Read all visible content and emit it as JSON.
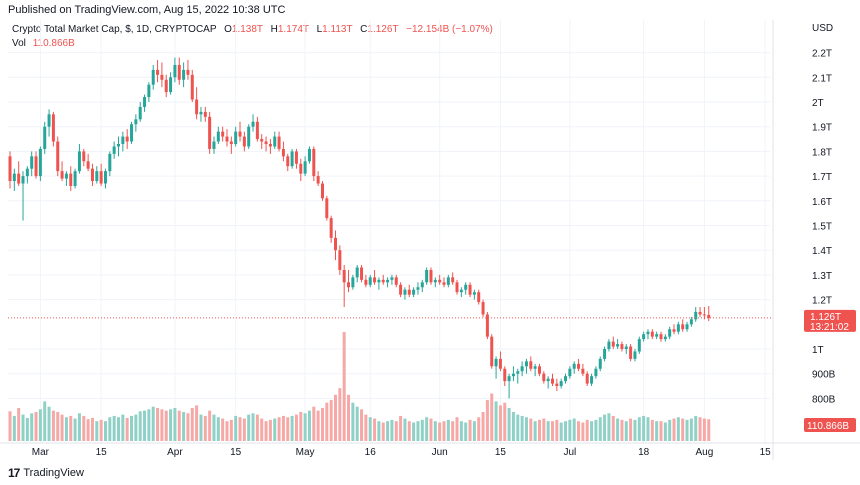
{
  "header": {
    "published": "Published on TradingView.com, Aug 15, 2022 10:38 UTC"
  },
  "legend": {
    "symbol": "Crypto Total Market Cap, $, 1D, CRYPTOCAP",
    "o_label": "O",
    "o_value": "1.138T",
    "h_label": "H",
    "h_value": "1.174T",
    "l_label": "L",
    "l_value": "1.113T",
    "c_label": "C",
    "c_value": "1.126T",
    "change": "−12.154B (−1.07%)",
    "vol_label": "Vol",
    "vol_value": "110.866B"
  },
  "footer": {
    "brand": "TradingView",
    "logo": "17"
  },
  "colors": {
    "up": "#26a69a",
    "down": "#ef5350",
    "up_vol": "#8fd1c6",
    "down_vol": "#f5a8a6",
    "grid": "#f0f3fa",
    "text": "#131722"
  },
  "chart_data": {
    "type": "candlestick",
    "title": "Crypto Total Market Cap, $, 1D, CRYPTOCAP",
    "currency": "USD",
    "y_ticks": [
      {
        "label": "2.2T",
        "v": 2.2
      },
      {
        "label": "2.1T",
        "v": 2.1
      },
      {
        "label": "2T",
        "v": 2.0
      },
      {
        "label": "1.9T",
        "v": 1.9
      },
      {
        "label": "1.8T",
        "v": 1.8
      },
      {
        "label": "1.7T",
        "v": 1.7
      },
      {
        "label": "1.6T",
        "v": 1.6
      },
      {
        "label": "1.5T",
        "v": 1.5
      },
      {
        "label": "1.4T",
        "v": 1.4
      },
      {
        "label": "1.3T",
        "v": 1.3
      },
      {
        "label": "1.2T",
        "v": 1.2
      },
      {
        "label": "1T",
        "v": 1.0
      },
      {
        "label": "900B",
        "v": 0.9
      },
      {
        "label": "800B",
        "v": 0.8
      }
    ],
    "x_ticks": [
      {
        "label": "Mar",
        "i": 7
      },
      {
        "label": "15",
        "i": 21
      },
      {
        "label": "Apr",
        "i": 38
      },
      {
        "label": "15",
        "i": 52
      },
      {
        "label": "May",
        "i": 68
      },
      {
        "label": "16",
        "i": 83
      },
      {
        "label": "Jun",
        "i": 99
      },
      {
        "label": "15",
        "i": 113
      },
      {
        "label": "Jul",
        "i": 129
      },
      {
        "label": "18",
        "i": 146
      },
      {
        "label": "Aug",
        "i": 160
      },
      {
        "label": "15",
        "i": 174
      }
    ],
    "last_price": {
      "label": "1.126T",
      "value": 1.126,
      "countdown": "13:21:02"
    },
    "last_volume": {
      "label": "110.866B"
    },
    "candles": [
      [
        1.78,
        1.8,
        1.65,
        1.68,
        45
      ],
      [
        1.68,
        1.73,
        1.64,
        1.71,
        38
      ],
      [
        1.71,
        1.76,
        1.66,
        1.67,
        50
      ],
      [
        1.67,
        1.72,
        1.52,
        1.7,
        40
      ],
      [
        1.7,
        1.74,
        1.67,
        1.73,
        35
      ],
      [
        1.73,
        1.8,
        1.7,
        1.78,
        42
      ],
      [
        1.78,
        1.8,
        1.69,
        1.7,
        44
      ],
      [
        1.7,
        1.82,
        1.68,
        1.81,
        48
      ],
      [
        1.81,
        1.92,
        1.79,
        1.9,
        60
      ],
      [
        1.9,
        1.97,
        1.86,
        1.95,
        52
      ],
      [
        1.95,
        1.96,
        1.82,
        1.84,
        46
      ],
      [
        1.84,
        1.86,
        1.7,
        1.72,
        44
      ],
      [
        1.72,
        1.76,
        1.68,
        1.69,
        40
      ],
      [
        1.69,
        1.72,
        1.66,
        1.71,
        36
      ],
      [
        1.71,
        1.74,
        1.64,
        1.66,
        38
      ],
      [
        1.66,
        1.73,
        1.65,
        1.72,
        34
      ],
      [
        1.72,
        1.83,
        1.71,
        1.8,
        42
      ],
      [
        1.8,
        1.81,
        1.74,
        1.76,
        38
      ],
      [
        1.76,
        1.79,
        1.72,
        1.73,
        33
      ],
      [
        1.73,
        1.75,
        1.66,
        1.68,
        35
      ],
      [
        1.68,
        1.74,
        1.67,
        1.72,
        30
      ],
      [
        1.72,
        1.75,
        1.66,
        1.67,
        32
      ],
      [
        1.67,
        1.73,
        1.65,
        1.72,
        30
      ],
      [
        1.72,
        1.8,
        1.7,
        1.79,
        36
      ],
      [
        1.79,
        1.84,
        1.77,
        1.82,
        38
      ],
      [
        1.82,
        1.86,
        1.78,
        1.83,
        36
      ],
      [
        1.83,
        1.88,
        1.8,
        1.86,
        40
      ],
      [
        1.86,
        1.89,
        1.81,
        1.84,
        35
      ],
      [
        1.84,
        1.92,
        1.83,
        1.91,
        38
      ],
      [
        1.91,
        1.95,
        1.88,
        1.93,
        40
      ],
      [
        1.93,
        2.0,
        1.92,
        1.98,
        45
      ],
      [
        1.98,
        2.03,
        1.96,
        2.02,
        46
      ],
      [
        2.02,
        2.08,
        2.0,
        2.07,
        48
      ],
      [
        2.07,
        2.15,
        2.05,
        2.13,
        52
      ],
      [
        2.13,
        2.17,
        2.08,
        2.11,
        50
      ],
      [
        2.11,
        2.16,
        2.06,
        2.09,
        48
      ],
      [
        2.09,
        2.11,
        2.02,
        2.04,
        46
      ],
      [
        2.04,
        2.12,
        2.03,
        2.1,
        48
      ],
      [
        2.1,
        2.18,
        2.08,
        2.15,
        50
      ],
      [
        2.15,
        2.18,
        2.07,
        2.09,
        46
      ],
      [
        2.09,
        2.16,
        2.06,
        2.13,
        44
      ],
      [
        2.13,
        2.17,
        2.09,
        2.11,
        42
      ],
      [
        2.11,
        2.13,
        2.0,
        2.01,
        50
      ],
      [
        2.01,
        2.06,
        1.93,
        1.95,
        54
      ],
      [
        1.95,
        1.98,
        1.92,
        1.96,
        40
      ],
      [
        1.96,
        1.98,
        1.92,
        1.94,
        38
      ],
      [
        1.94,
        1.96,
        1.79,
        1.81,
        46
      ],
      [
        1.81,
        1.86,
        1.79,
        1.84,
        40
      ],
      [
        1.84,
        1.9,
        1.83,
        1.88,
        36
      ],
      [
        1.88,
        1.9,
        1.84,
        1.86,
        34
      ],
      [
        1.86,
        1.89,
        1.82,
        1.84,
        30
      ],
      [
        1.84,
        1.86,
        1.79,
        1.83,
        32
      ],
      [
        1.83,
        1.9,
        1.82,
        1.88,
        38
      ],
      [
        1.88,
        1.92,
        1.84,
        1.86,
        36
      ],
      [
        1.86,
        1.88,
        1.8,
        1.82,
        34
      ],
      [
        1.82,
        1.91,
        1.81,
        1.9,
        40
      ],
      [
        1.9,
        1.95,
        1.88,
        1.92,
        42
      ],
      [
        1.92,
        1.94,
        1.84,
        1.85,
        40
      ],
      [
        1.85,
        1.87,
        1.81,
        1.84,
        34
      ],
      [
        1.84,
        1.86,
        1.8,
        1.83,
        30
      ],
      [
        1.83,
        1.85,
        1.79,
        1.82,
        32
      ],
      [
        1.82,
        1.88,
        1.81,
        1.86,
        34
      ],
      [
        1.86,
        1.88,
        1.8,
        1.81,
        36
      ],
      [
        1.81,
        1.84,
        1.76,
        1.78,
        38
      ],
      [
        1.78,
        1.79,
        1.72,
        1.74,
        36
      ],
      [
        1.74,
        1.81,
        1.73,
        1.8,
        38
      ],
      [
        1.8,
        1.81,
        1.73,
        1.75,
        40
      ],
      [
        1.75,
        1.77,
        1.68,
        1.71,
        44
      ],
      [
        1.71,
        1.78,
        1.7,
        1.76,
        42
      ],
      [
        1.76,
        1.82,
        1.75,
        1.81,
        46
      ],
      [
        1.81,
        1.82,
        1.68,
        1.7,
        52
      ],
      [
        1.7,
        1.72,
        1.66,
        1.67,
        46
      ],
      [
        1.67,
        1.68,
        1.6,
        1.61,
        50
      ],
      [
        1.61,
        1.62,
        1.52,
        1.53,
        58
      ],
      [
        1.53,
        1.54,
        1.43,
        1.45,
        62
      ],
      [
        1.45,
        1.48,
        1.36,
        1.4,
        70
      ],
      [
        1.4,
        1.42,
        1.3,
        1.32,
        80
      ],
      [
        1.32,
        1.34,
        1.17,
        1.27,
        165
      ],
      [
        1.27,
        1.32,
        1.23,
        1.25,
        70
      ],
      [
        1.25,
        1.3,
        1.24,
        1.29,
        58
      ],
      [
        1.29,
        1.34,
        1.27,
        1.33,
        52
      ],
      [
        1.33,
        1.34,
        1.27,
        1.28,
        48
      ],
      [
        1.28,
        1.3,
        1.25,
        1.26,
        40
      ],
      [
        1.26,
        1.3,
        1.25,
        1.29,
        36
      ],
      [
        1.29,
        1.32,
        1.26,
        1.27,
        34
      ],
      [
        1.27,
        1.29,
        1.24,
        1.28,
        30
      ],
      [
        1.28,
        1.3,
        1.26,
        1.27,
        28
      ],
      [
        1.27,
        1.29,
        1.25,
        1.28,
        30
      ],
      [
        1.28,
        1.3,
        1.26,
        1.29,
        32
      ],
      [
        1.29,
        1.3,
        1.25,
        1.26,
        30
      ],
      [
        1.26,
        1.27,
        1.21,
        1.22,
        38
      ],
      [
        1.22,
        1.25,
        1.2,
        1.24,
        34
      ],
      [
        1.24,
        1.26,
        1.21,
        1.22,
        30
      ],
      [
        1.22,
        1.25,
        1.21,
        1.24,
        28
      ],
      [
        1.24,
        1.27,
        1.22,
        1.25,
        30
      ],
      [
        1.25,
        1.28,
        1.23,
        1.27,
        32
      ],
      [
        1.27,
        1.33,
        1.26,
        1.32,
        36
      ],
      [
        1.32,
        1.33,
        1.26,
        1.27,
        34
      ],
      [
        1.27,
        1.29,
        1.25,
        1.28,
        30
      ],
      [
        1.28,
        1.3,
        1.26,
        1.27,
        28
      ],
      [
        1.27,
        1.29,
        1.25,
        1.26,
        30
      ],
      [
        1.26,
        1.3,
        1.25,
        1.29,
        32
      ],
      [
        1.29,
        1.31,
        1.26,
        1.27,
        30
      ],
      [
        1.27,
        1.28,
        1.22,
        1.23,
        36
      ],
      [
        1.23,
        1.25,
        1.21,
        1.24,
        30
      ],
      [
        1.24,
        1.27,
        1.22,
        1.26,
        28
      ],
      [
        1.26,
        1.27,
        1.21,
        1.22,
        32
      ],
      [
        1.22,
        1.24,
        1.2,
        1.23,
        30
      ],
      [
        1.23,
        1.24,
        1.18,
        1.19,
        36
      ],
      [
        1.19,
        1.2,
        1.13,
        1.14,
        44
      ],
      [
        1.14,
        1.15,
        1.04,
        1.05,
        62
      ],
      [
        1.05,
        1.06,
        0.92,
        0.93,
        72
      ],
      [
        0.93,
        0.97,
        0.88,
        0.96,
        60
      ],
      [
        0.96,
        0.99,
        0.91,
        0.92,
        54
      ],
      [
        0.92,
        0.93,
        0.85,
        0.87,
        58
      ],
      [
        0.87,
        0.9,
        0.8,
        0.89,
        50
      ],
      [
        0.89,
        0.93,
        0.87,
        0.9,
        44
      ],
      [
        0.9,
        0.92,
        0.86,
        0.91,
        40
      ],
      [
        0.91,
        0.95,
        0.89,
        0.93,
        38
      ],
      [
        0.93,
        0.96,
        0.9,
        0.95,
        36
      ],
      [
        0.95,
        0.97,
        0.91,
        0.92,
        34
      ],
      [
        0.92,
        0.94,
        0.89,
        0.93,
        30
      ],
      [
        0.93,
        0.94,
        0.89,
        0.9,
        32
      ],
      [
        0.9,
        0.91,
        0.86,
        0.87,
        34
      ],
      [
        0.87,
        0.89,
        0.84,
        0.88,
        30
      ],
      [
        0.88,
        0.9,
        0.85,
        0.86,
        30
      ],
      [
        0.86,
        0.88,
        0.83,
        0.85,
        32
      ],
      [
        0.85,
        0.88,
        0.84,
        0.87,
        28
      ],
      [
        0.87,
        0.9,
        0.86,
        0.89,
        30
      ],
      [
        0.89,
        0.93,
        0.88,
        0.92,
        32
      ],
      [
        0.92,
        0.95,
        0.9,
        0.94,
        34
      ],
      [
        0.94,
        0.96,
        0.91,
        0.92,
        30
      ],
      [
        0.92,
        0.94,
        0.89,
        0.9,
        28
      ],
      [
        0.9,
        0.91,
        0.85,
        0.86,
        32
      ],
      [
        0.86,
        0.9,
        0.85,
        0.89,
        30
      ],
      [
        0.89,
        0.93,
        0.88,
        0.92,
        32
      ],
      [
        0.92,
        0.97,
        0.91,
        0.96,
        36
      ],
      [
        0.96,
        1.01,
        0.95,
        1.0,
        40
      ],
      [
        1.0,
        1.04,
        0.99,
        1.03,
        42
      ],
      [
        1.03,
        1.05,
        1.0,
        1.01,
        38
      ],
      [
        1.01,
        1.04,
        1.0,
        1.02,
        34
      ],
      [
        1.02,
        1.03,
        0.99,
        1.0,
        32
      ],
      [
        1.0,
        1.02,
        0.98,
        1.01,
        30
      ],
      [
        1.01,
        1.02,
        0.95,
        0.96,
        34
      ],
      [
        0.96,
        1.0,
        0.95,
        0.99,
        32
      ],
      [
        0.99,
        1.05,
        0.98,
        1.04,
        36
      ],
      [
        1.04,
        1.07,
        1.03,
        1.06,
        38
      ],
      [
        1.06,
        1.08,
        1.04,
        1.07,
        36
      ],
      [
        1.07,
        1.08,
        1.04,
        1.05,
        32
      ],
      [
        1.05,
        1.07,
        1.04,
        1.06,
        30
      ],
      [
        1.06,
        1.07,
        1.03,
        1.04,
        30
      ],
      [
        1.04,
        1.06,
        1.03,
        1.05,
        28
      ],
      [
        1.05,
        1.09,
        1.04,
        1.08,
        32
      ],
      [
        1.08,
        1.1,
        1.06,
        1.07,
        34
      ],
      [
        1.07,
        1.11,
        1.06,
        1.1,
        36
      ],
      [
        1.1,
        1.12,
        1.07,
        1.08,
        34
      ],
      [
        1.08,
        1.11,
        1.07,
        1.1,
        32
      ],
      [
        1.1,
        1.13,
        1.09,
        1.12,
        34
      ],
      [
        1.12,
        1.17,
        1.11,
        1.15,
        38
      ],
      [
        1.15,
        1.17,
        1.13,
        1.14,
        36
      ],
      [
        1.14,
        1.17,
        1.12,
        1.138,
        34
      ],
      [
        1.138,
        1.174,
        1.113,
        1.126,
        33
      ]
    ]
  }
}
